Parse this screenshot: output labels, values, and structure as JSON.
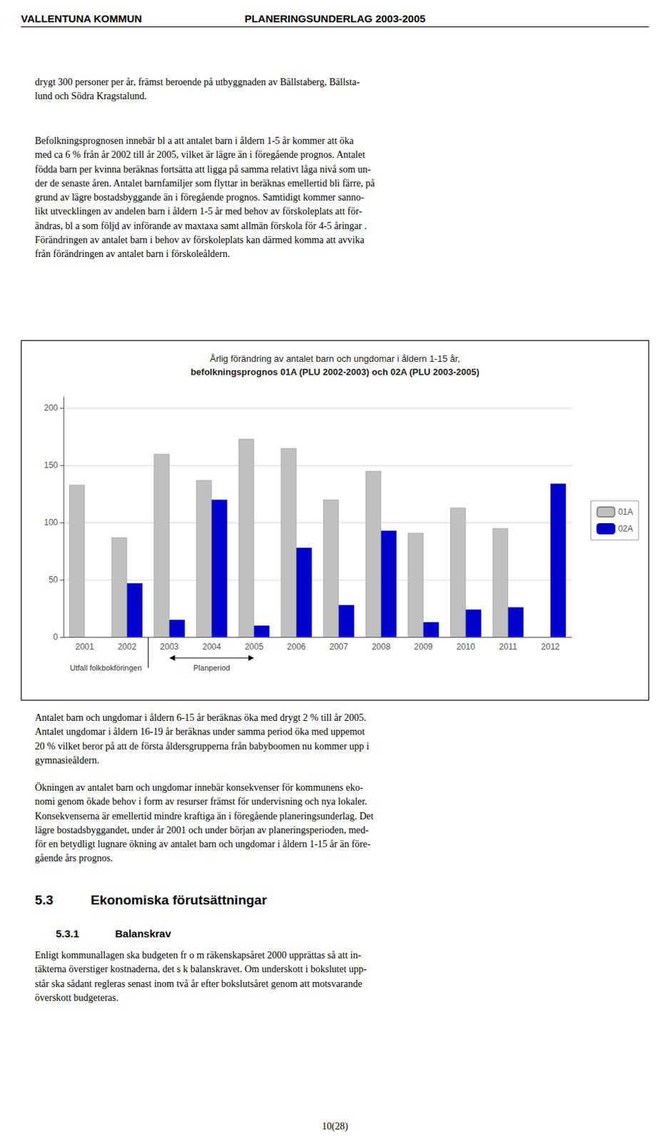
{
  "chart_data": {
    "type": "bar",
    "title": "Årlig förändring av antalet barn och ungdomar i åldern 1-15 år,",
    "subtitle": "befolkningsprognos 01A (PLU 2002-2003) och 02A (PLU 2003-2005)",
    "categories": [
      "2001",
      "2002",
      "2003",
      "2004",
      "2005",
      "2006",
      "2007",
      "2008",
      "2009",
      "2010",
      "2011",
      "2012"
    ],
    "series": [
      {
        "name": "01A",
        "color": "#c0c0c0",
        "values": [
          133,
          87,
          160,
          137,
          173,
          165,
          120,
          145,
          91,
          113,
          95,
          null
        ]
      },
      {
        "name": "02A",
        "color": "#0000cc",
        "values": [
          null,
          47,
          15,
          120,
          10,
          78,
          28,
          93,
          13,
          24,
          26,
          134
        ]
      }
    ],
    "ylim": [
      0,
      210
    ],
    "yticks": [
      0,
      50,
      100,
      150,
      200
    ],
    "grid": true,
    "legend": "right",
    "annotations": [
      "Utfall folkbokföringen",
      "Planperiod"
    ]
  },
  "page": {
    "header": [
      "VALLENTUNA KOMMUN",
      "PLANERINGSUNDERLAG 2003-2005"
    ],
    "paragraphs_before": [
      "drygt 300 personer per år, främst beroende på utbyggnaden av Bällstaberg, Bällsta-\nlund och Södra Kragstalund.",
      "Befolkningsprognosen innebär bl a att antalet barn i åldern 1-5 år kommer att öka\nmed ca 6 % från år 2002 till år 2005, vilket är lägre än i föregående prognos. Antalet\nfödda barn per kvinna beräknas fortsätta att ligga på samma relativt låga nivå som un-\nder de senaste åren. Antalet barnfamiljer som flyttar in beräknas emellertid bli färre, på\ngrund av lägre bostadsbyggande än i föregående prognos. Samtidigt kommer sanno-\nlikt utvecklingen av andelen barn i åldern 1-5 år med behov av förskoleplats att för-\nändras, bl a som följd av införande av maxtaxa samt allmän förskola för 4-5 åringar .\nFörändringen av antalet barn i behov av förskoleplats kan därmed komma att avvika\nfrån förändringen av antalet barn i förskoleåldern."
    ],
    "paragraphs_after": [
      "Antalet barn och ungdomar i åldern 6-15 år beräknas öka med drygt 2 % till år 2005.\nAntalet ungdomar i åldern 16-19 år beräknas under samma period öka med uppemot\n20 % vilket beror på att de första åldersgrupperna från babyboomen nu kommer upp i\ngymnasieåldern.",
      "Ökningen av antalet barn och ungdomar innebär konsekvenser för kommunens eko-\nnomi genom ökade behov i form av resurser främst för undervisning och nya lokaler.\nKonsekvenserna är emellertid mindre kraftiga än i föregående planeringsunderlag. Det\nlägre bostadsbyggandet, under år 2001 och under början av planeringsperioden, med-\nför en betydligt lugnare ökning av antalet barn och ungdomar i åldern 1-15 år än före-\ngående års prognos."
    ],
    "section": [
      "5.3",
      "Ekonomiska förutsättningar"
    ],
    "subsection": [
      "5.3.1",
      "Balanskrav"
    ],
    "paragraphs_section": [
      "Enligt kommunallagen ska budgeten fr o m räkenskapsåret 2000 upprättas så att in-\ntäkterna överstiger kostnaderna, det s k balanskravet. Om underskott i bokslutet upp-\nstår ska sådant regleras senast inom två år efter bokslutsåret genom att motsvarande\növerskott budgeteras."
    ],
    "page_number": "10(28)"
  }
}
